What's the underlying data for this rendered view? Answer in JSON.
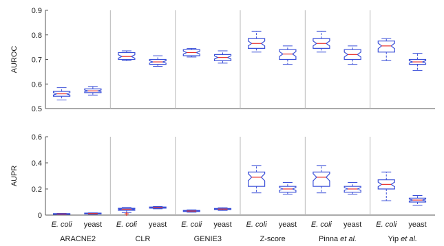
{
  "colors": {
    "box": "#3a4fd8",
    "median": "#e8302a",
    "divider": "#b8b8b8",
    "axis": "#555555"
  },
  "groups": [
    {
      "name": "ARACNE2",
      "name_italic": ""
    },
    {
      "name": "CLR",
      "name_italic": ""
    },
    {
      "name": "GENIE3",
      "name_italic": ""
    },
    {
      "name": "Z-score",
      "name_italic": ""
    },
    {
      "name": "Pinna ",
      "name_italic": "et al."
    },
    {
      "name": "Yip ",
      "name_italic": "et al."
    }
  ],
  "category_labels": [
    {
      "text": "E. coli",
      "italic": true
    },
    {
      "text": "yeast",
      "italic": false
    },
    {
      "text": "E. coli",
      "italic": true
    },
    {
      "text": "yeast",
      "italic": false
    },
    {
      "text": "E. coli",
      "italic": true
    },
    {
      "text": "yeast",
      "italic": false
    },
    {
      "text": "E. coli",
      "italic": true
    },
    {
      "text": "yeast",
      "italic": false
    },
    {
      "text": "E. coli",
      "italic": true
    },
    {
      "text": "yeast",
      "italic": false
    },
    {
      "text": "E. coli",
      "italic": true
    },
    {
      "text": "yeast",
      "italic": false
    }
  ],
  "chart_data": [
    {
      "type": "box",
      "ylabel": "AUROC",
      "ylim": [
        0.5,
        0.9
      ],
      "yticks": [
        "0.5",
        "0.6",
        "0.7",
        "0.8",
        "0.9"
      ],
      "ytick_values": [
        0.5,
        0.6,
        0.7,
        0.8,
        0.9
      ],
      "boxes": [
        {
          "min": 0.535,
          "q1": 0.55,
          "median": 0.56,
          "q3": 0.57,
          "max": 0.585
        },
        {
          "min": 0.555,
          "q1": 0.565,
          "median": 0.572,
          "q3": 0.58,
          "max": 0.59
        },
        {
          "min": 0.695,
          "q1": 0.7,
          "median": 0.712,
          "q3": 0.728,
          "max": 0.735
        },
        {
          "min": 0.672,
          "q1": 0.68,
          "median": 0.69,
          "q3": 0.7,
          "max": 0.715
        },
        {
          "min": 0.71,
          "q1": 0.715,
          "median": 0.728,
          "q3": 0.74,
          "max": 0.745
        },
        {
          "min": 0.685,
          "q1": 0.695,
          "median": 0.708,
          "q3": 0.72,
          "max": 0.735
        },
        {
          "min": 0.73,
          "q1": 0.745,
          "median": 0.765,
          "q3": 0.785,
          "max": 0.815
        },
        {
          "min": 0.68,
          "q1": 0.7,
          "median": 0.722,
          "q3": 0.74,
          "max": 0.755
        },
        {
          "min": 0.73,
          "q1": 0.745,
          "median": 0.765,
          "q3": 0.785,
          "max": 0.815
        },
        {
          "min": 0.68,
          "q1": 0.7,
          "median": 0.72,
          "q3": 0.74,
          "max": 0.755
        },
        {
          "min": 0.695,
          "q1": 0.73,
          "median": 0.755,
          "q3": 0.775,
          "max": 0.785
        },
        {
          "min": 0.655,
          "q1": 0.68,
          "median": 0.69,
          "q3": 0.7,
          "max": 0.725
        }
      ]
    },
    {
      "type": "box",
      "ylabel": "AUPR",
      "ylim": [
        0,
        0.6
      ],
      "yticks": [
        "0",
        "0.2",
        "0.4",
        "0.6"
      ],
      "ytick_values": [
        0,
        0.2,
        0.4,
        0.6
      ],
      "boxes": [
        {
          "min": 0.003,
          "q1": 0.006,
          "median": 0.008,
          "q3": 0.011,
          "max": 0.013
        },
        {
          "min": 0.006,
          "q1": 0.009,
          "median": 0.012,
          "q3": 0.015,
          "max": 0.017
        },
        {
          "min": 0.02,
          "q1": 0.037,
          "median": 0.045,
          "q3": 0.052,
          "max": 0.058,
          "outlier": 0.01
        },
        {
          "min": 0.048,
          "q1": 0.053,
          "median": 0.057,
          "q3": 0.062,
          "max": 0.066
        },
        {
          "min": 0.022,
          "q1": 0.027,
          "median": 0.031,
          "q3": 0.036,
          "max": 0.04
        },
        {
          "min": 0.036,
          "q1": 0.042,
          "median": 0.046,
          "q3": 0.051,
          "max": 0.056
        },
        {
          "min": 0.17,
          "q1": 0.22,
          "median": 0.29,
          "q3": 0.33,
          "max": 0.38
        },
        {
          "min": 0.16,
          "q1": 0.175,
          "median": 0.2,
          "q3": 0.22,
          "max": 0.25
        },
        {
          "min": 0.17,
          "q1": 0.22,
          "median": 0.29,
          "q3": 0.33,
          "max": 0.38
        },
        {
          "min": 0.16,
          "q1": 0.175,
          "median": 0.2,
          "q3": 0.22,
          "max": 0.25
        },
        {
          "min": 0.11,
          "q1": 0.2,
          "median": 0.235,
          "q3": 0.27,
          "max": 0.33
        },
        {
          "min": 0.075,
          "q1": 0.1,
          "median": 0.115,
          "q3": 0.13,
          "max": 0.15
        }
      ]
    }
  ]
}
